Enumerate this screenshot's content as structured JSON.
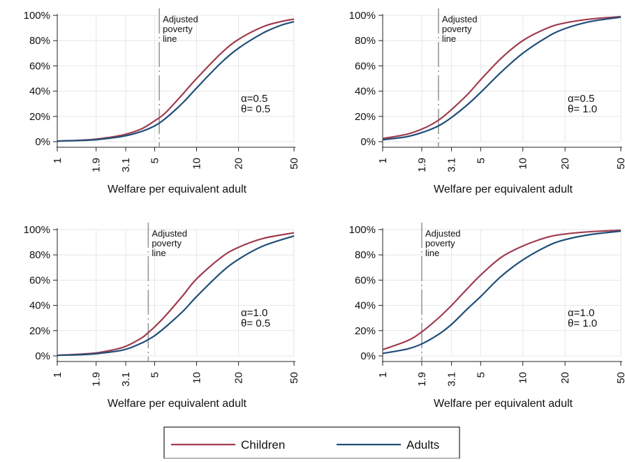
{
  "chart_data": [
    {
      "type": "line",
      "xscale": "log",
      "xlabel": "Welfare per equivalent adult",
      "xticks": [
        "1",
        "1.9",
        "3.1",
        "5",
        "10",
        "20",
        "50"
      ],
      "yticks": [
        "0%",
        "20%",
        "40%",
        "60%",
        "80%",
        "100%"
      ],
      "ylim": [
        0,
        100
      ],
      "xlim": [
        1,
        50
      ],
      "grid": true,
      "annotation": [
        "Adjusted",
        "poverty",
        "line"
      ],
      "poverty_line_x": 5.4,
      "params": [
        "α=0.5",
        "θ= 0.5"
      ],
      "series": [
        {
          "name": "Children",
          "color": "#a03c4e",
          "x": [
            1,
            1.5,
            2,
            3,
            4,
            5,
            6,
            8,
            10,
            15,
            20,
            30,
            40,
            50
          ],
          "values": [
            0.5,
            1.2,
            2.3,
            5.5,
            10,
            16.5,
            23,
            38,
            50,
            70,
            81,
            91,
            95,
            97
          ]
        },
        {
          "name": "Adults",
          "color": "#1f4e7a",
          "x": [
            1,
            1.5,
            2,
            3,
            4,
            5,
            6,
            8,
            10,
            15,
            20,
            30,
            40,
            50
          ],
          "values": [
            0.5,
            1,
            1.8,
            4.4,
            8,
            12.5,
            18.5,
            31,
            42.5,
            62.5,
            74,
            86,
            92,
            95
          ]
        }
      ]
    },
    {
      "type": "line",
      "xscale": "log",
      "xlabel": "Welfare per equivalent adult",
      "xticks": [
        "1",
        "1.9",
        "3.1",
        "5",
        "10",
        "20",
        "50"
      ],
      "yticks": [
        "0%",
        "20%",
        "40%",
        "60%",
        "80%",
        "100%"
      ],
      "ylim": [
        0,
        100
      ],
      "xlim": [
        1,
        50
      ],
      "grid": true,
      "annotation": [
        "Adjusted",
        "poverty",
        "line"
      ],
      "poverty_line_x": 2.5,
      "params": [
        "α=0.5",
        "θ= 1.0"
      ],
      "series": [
        {
          "name": "Children",
          "color": "#a03c4e",
          "x": [
            1,
            1.5,
            2,
            2.5,
            3,
            4,
            5,
            7,
            10,
            15,
            20,
            30,
            50
          ],
          "values": [
            2.5,
            6,
            11,
            17,
            24,
            37,
            49,
            66,
            80,
            90,
            94,
            97,
            99
          ]
        },
        {
          "name": "Adults",
          "color": "#1f4e7a",
          "x": [
            1,
            1.5,
            2,
            2.5,
            3,
            4,
            5,
            7,
            10,
            15,
            20,
            30,
            50
          ],
          "values": [
            1.5,
            4,
            8,
            12.5,
            18,
            29,
            39,
            55,
            70,
            83,
            89.5,
            95,
            98.5
          ]
        }
      ]
    },
    {
      "type": "line",
      "xscale": "log",
      "xlabel": "Welfare per equivalent adult",
      "xticks": [
        "1",
        "1.9",
        "3.1",
        "5",
        "10",
        "20",
        "50"
      ],
      "yticks": [
        "0%",
        "20%",
        "40%",
        "60%",
        "80%",
        "100%"
      ],
      "ylim": [
        0,
        100
      ],
      "xlim": [
        1,
        50
      ],
      "grid": true,
      "annotation": [
        "Adjusted",
        "poverty",
        "line"
      ],
      "poverty_line_x": 4.5,
      "params": [
        "α=1.0",
        "θ= 0.5"
      ],
      "series": [
        {
          "name": "Children",
          "color": "#a03c4e",
          "x": [
            1,
            1.5,
            2,
            3,
            4,
            4.5,
            5,
            6,
            8,
            10,
            15,
            20,
            30,
            50
          ],
          "values": [
            0.5,
            1.5,
            2.7,
            7,
            14,
            18.5,
            23,
            32,
            48,
            61,
            78,
            86,
            93,
            97.5
          ]
        },
        {
          "name": "Adults",
          "color": "#1f4e7a",
          "x": [
            1,
            1.5,
            2,
            3,
            4,
            4.5,
            5,
            6,
            8,
            10,
            15,
            20,
            30,
            50
          ],
          "values": [
            0.5,
            1,
            2,
            4.8,
            10,
            13,
            16,
            23,
            35.5,
            47,
            66,
            76.5,
            87,
            95
          ]
        }
      ]
    },
    {
      "type": "line",
      "xscale": "log",
      "xlabel": "Welfare per equivalent adult",
      "xticks": [
        "1",
        "1.9",
        "3.1",
        "5",
        "10",
        "20",
        "50"
      ],
      "yticks": [
        "0%",
        "20%",
        "40%",
        "60%",
        "80%",
        "100%"
      ],
      "ylim": [
        0,
        100
      ],
      "xlim": [
        1,
        50
      ],
      "grid": true,
      "annotation": [
        "Adjusted",
        "poverty",
        "line"
      ],
      "poverty_line_x": 1.9,
      "params": [
        "α=1.0",
        "θ= 1.0"
      ],
      "series": [
        {
          "name": "Children",
          "color": "#a03c4e",
          "x": [
            1,
            1.5,
            1.9,
            2.5,
            3.1,
            4,
            5,
            7,
            10,
            15,
            20,
            30,
            50
          ],
          "values": [
            5,
            12,
            19,
            30,
            40,
            53,
            64,
            78,
            87,
            94,
            96.5,
            98.3,
            99.5
          ]
        },
        {
          "name": "Adults",
          "color": "#1f4e7a",
          "x": [
            1,
            1.5,
            1.9,
            2.5,
            3.1,
            4,
            5,
            7,
            10,
            15,
            20,
            30,
            50
          ],
          "values": [
            2,
            5.5,
            9.5,
            17,
            25,
            37,
            47,
            63,
            76,
            87,
            92,
            96,
            98.8
          ]
        }
      ]
    }
  ],
  "legend": {
    "items": [
      {
        "label": "Children",
        "color": "#a03c4e"
      },
      {
        "label": "Adults",
        "color": "#1f4e7a"
      }
    ]
  }
}
